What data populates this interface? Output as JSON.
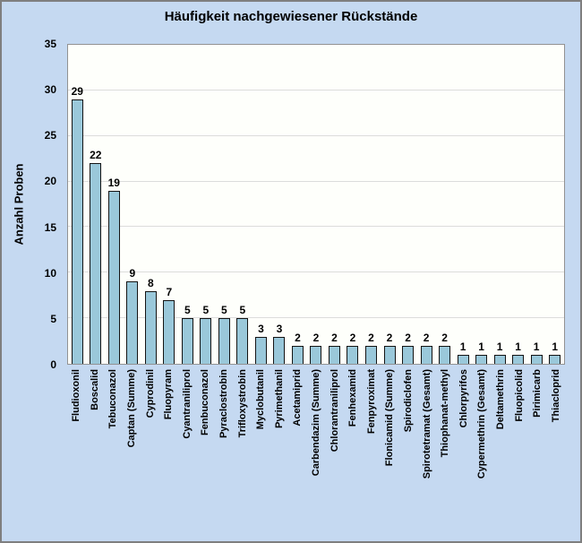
{
  "chart_data": {
    "type": "bar",
    "title": "Häufigkeit nachgewiesener Rückstände",
    "xlabel": "",
    "ylabel": "Anzahl Proben",
    "ylim": [
      0,
      35
    ],
    "yticks": [
      0,
      5,
      10,
      15,
      20,
      25,
      30,
      35
    ],
    "grid": true,
    "legend": false,
    "data_labels": true,
    "categories": [
      "Fludioxonil",
      "Boscalid",
      "Tebuconazol",
      "Captan (Summe)",
      "Cyprodinil",
      "Fluopyram",
      "Cyantraniliprol",
      "Fenbuconazol",
      "Pyraclostrobin",
      "Trifloxystrobin",
      "Myclobutanil",
      "Pyrimethanil",
      "Acetamiprid",
      "Carbendazim (Summe)",
      "Chlorantraniliprol",
      "Fenhexamid",
      "Fenpyroximat",
      "Flonicamid (Summe)",
      "Spirodiclofen",
      "Spirotetramat (Gesamt)",
      "Thiophanat-methyl",
      "Chlorpyrifos",
      "Cypermethrin (Gesamt)",
      "Deltamethrin",
      "Fluopicolid",
      "Pirimicarb",
      "Thiacloprid"
    ],
    "values": [
      29,
      22,
      19,
      9,
      8,
      7,
      5,
      5,
      5,
      5,
      3,
      3,
      2,
      2,
      2,
      2,
      2,
      2,
      2,
      2,
      2,
      1,
      1,
      1,
      1,
      1,
      1
    ],
    "colors": {
      "background": "#C5D9F1",
      "frame_border": "#7F7F7F",
      "plot_background": "#FEFFFB",
      "plot_border": "#929292",
      "gridline": "#DCDCDC",
      "bar_fill": "#9AC8DA",
      "bar_border": "#141414",
      "text": "#000000"
    }
  }
}
